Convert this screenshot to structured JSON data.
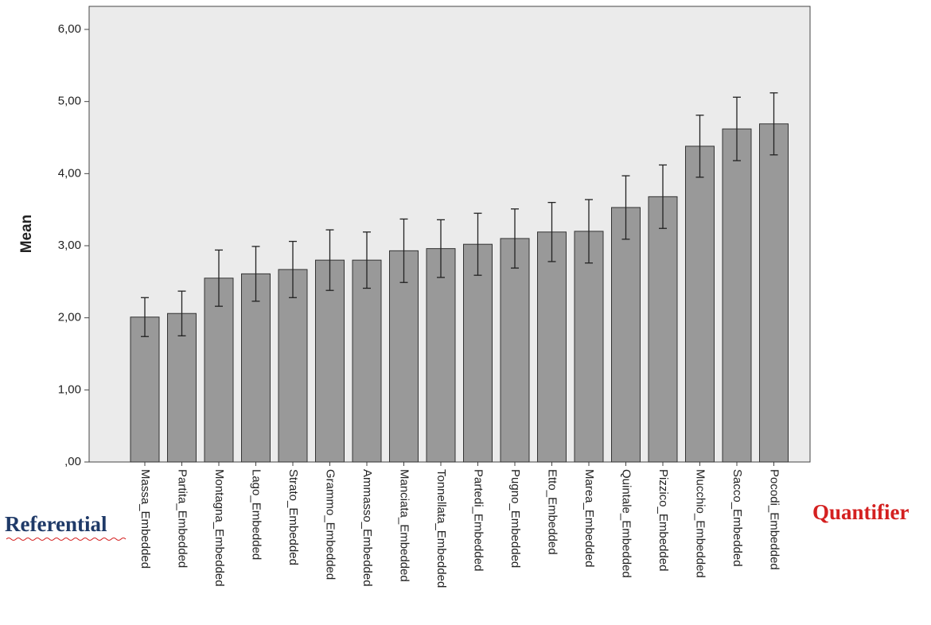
{
  "chart_data": {
    "type": "bar",
    "y_label": "Mean",
    "categories": [
      "Massa_Embedded",
      "Partita_Embedded",
      "Montagna_Embedded",
      "Lago_Embedded",
      "Strato_Embedded",
      "Grammo_Embedded",
      "Ammasso_Embedded",
      "Manciata_Embedded",
      "Tonnellata_Embedded",
      "Partedi_Embedded",
      "Pugno_Embedded",
      "Etto_Embedded",
      "Marea_Embedded",
      "Quintale_Embedded",
      "Pizzico_Embedded",
      "Mucchio_Embedded",
      "Sacco_Embedded",
      "Pocodi_Embedded"
    ],
    "values": [
      2.01,
      2.06,
      2.55,
      2.61,
      2.67,
      2.8,
      2.8,
      2.93,
      2.96,
      3.02,
      3.1,
      3.19,
      3.2,
      3.53,
      3.68,
      4.38,
      4.62,
      4.69
    ],
    "errors": [
      0.27,
      0.31,
      0.39,
      0.38,
      0.39,
      0.42,
      0.39,
      0.44,
      0.4,
      0.43,
      0.41,
      0.41,
      0.44,
      0.44,
      0.44,
      0.43,
      0.44,
      0.43
    ],
    "color": "#999999",
    "ylim": [
      0,
      6.32
    ],
    "yticks": [
      {
        "value": 0,
        "label": ",00"
      },
      {
        "value": 1,
        "label": "1,00"
      },
      {
        "value": 2,
        "label": "2,00"
      },
      {
        "value": 3,
        "label": "3,00"
      },
      {
        "value": 4,
        "label": "4,00"
      },
      {
        "value": 5,
        "label": "5,00"
      },
      {
        "value": 6,
        "label": "6,00"
      }
    ],
    "annotations": [
      {
        "text": "Referential",
        "color": "#1f3a68"
      },
      {
        "text": "Quantifier",
        "color": "#d42020"
      }
    ]
  }
}
